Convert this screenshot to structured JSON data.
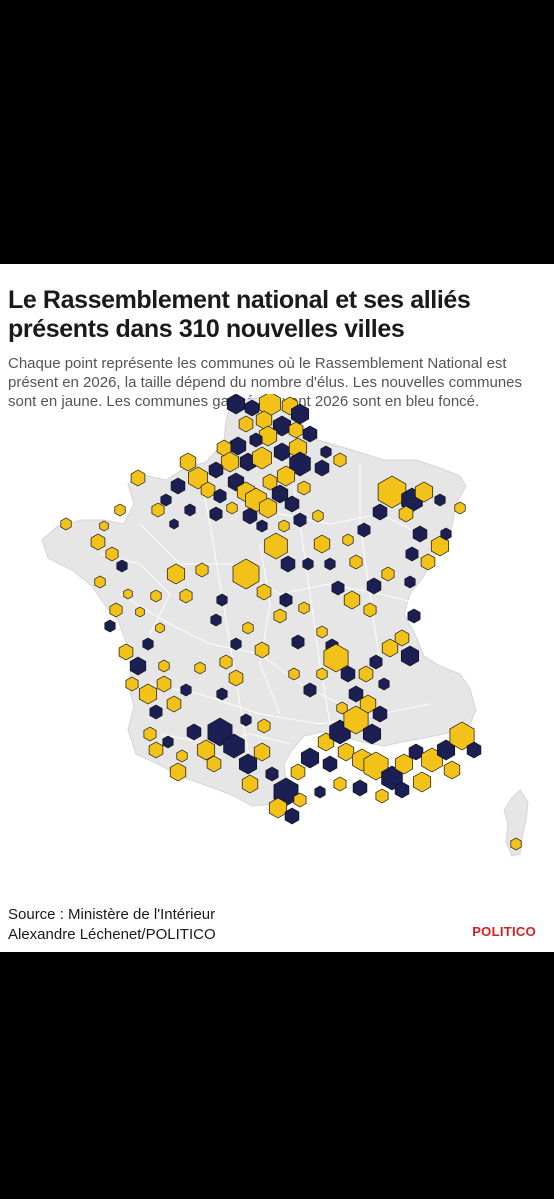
{
  "header": {
    "title_line1": "Le Rassemblement national et ses alliés",
    "title_line2": "présents dans 310 nouvelles villes",
    "subtitle": "Chaque point représente les communes où le Rassemblement National est présent en 2026, la taille dépend du nombre d'élus. Les nouvelles communes sont en jaune. Les communes gagnées avant 2026 sont en bleu foncé."
  },
  "footer": {
    "source": "Source : Ministère de l'Intérieur",
    "credit": "Alexandre Léchenet/POLITICO",
    "logo": "POLITICO"
  },
  "legend": {
    "new_color": "#f2c218",
    "old_color": "#1c1f54",
    "land_color": "#e6e6e6",
    "border_color": "#ffffff"
  }
}
